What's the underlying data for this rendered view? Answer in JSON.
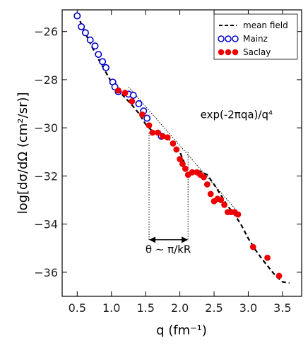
{
  "chart_data": {
    "type": "scatter",
    "xlabel": "q (fm⁻¹)",
    "ylabel": "log[dσ/dΩ (cm²/sr)]",
    "xlim": [
      0.28,
      3.78
    ],
    "ylim": [
      -37.0,
      -25.1
    ],
    "xticks": [
      0.5,
      1.0,
      1.5,
      2.0,
      2.5,
      3.0,
      3.5
    ],
    "xtick_labels": [
      "0.5",
      "1.0",
      "1.5",
      "2.0",
      "2.5",
      "3.0",
      "3.5"
    ],
    "yticks": [
      -26,
      -28,
      -30,
      -32,
      -34,
      -36
    ],
    "ytick_labels": [
      "−26",
      "−28",
      "−30",
      "−32",
      "−34",
      "−36"
    ],
    "grid": false,
    "legend_position": "top-right",
    "series": [
      {
        "name": "mean field",
        "kind": "line",
        "style": "dashed",
        "color": "#000000",
        "x": [
          0.5,
          0.6,
          0.7,
          0.8,
          0.9,
          1.0,
          1.1,
          1.2,
          1.3,
          1.4,
          1.5,
          1.6,
          1.7,
          1.8,
          1.9,
          2.0,
          2.05,
          2.1,
          2.2,
          2.3,
          2.4,
          2.5,
          2.6,
          2.7,
          2.8,
          2.9,
          3.0,
          3.1,
          3.2,
          3.3,
          3.4,
          3.5,
          3.6
        ],
        "y": [
          -25.3,
          -25.95,
          -26.55,
          -27.1,
          -27.6,
          -28.1,
          -28.45,
          -28.75,
          -29.05,
          -29.4,
          -29.85,
          -30.15,
          -30.3,
          -30.4,
          -30.6,
          -31.0,
          -31.35,
          -31.7,
          -31.8,
          -31.8,
          -31.95,
          -32.35,
          -32.8,
          -33.25,
          -33.6,
          -34.05,
          -34.6,
          -35.05,
          -35.45,
          -35.8,
          -36.15,
          -36.4,
          -36.45
        ]
      },
      {
        "name": "Mainz",
        "kind": "scatter",
        "marker": "open-circle",
        "color": "#0000cc",
        "x": [
          0.5,
          0.56,
          0.62,
          0.69,
          0.76,
          0.81,
          0.87,
          0.92,
          1.02,
          1.05,
          1.1,
          1.25,
          1.32,
          1.4,
          1.47,
          1.52,
          1.73
        ],
        "y": [
          -25.35,
          -25.8,
          -26.05,
          -26.35,
          -26.6,
          -26.95,
          -27.25,
          -27.5,
          -28.1,
          -28.3,
          -28.5,
          -28.6,
          -28.65,
          -29.0,
          -29.3,
          -29.6,
          -30.35
        ]
      },
      {
        "name": "Saclay",
        "kind": "scatter",
        "marker": "filled-circle",
        "color": "#ee0000",
        "x": [
          1.1,
          1.2,
          1.3,
          1.45,
          1.55,
          1.6,
          1.68,
          1.75,
          1.82,
          1.9,
          1.95,
          2.0,
          2.04,
          2.08,
          2.12,
          2.18,
          2.25,
          2.3,
          2.35,
          2.4,
          2.45,
          2.5,
          2.55,
          2.6,
          2.65,
          2.7,
          2.75,
          2.8,
          2.85,
          3.07,
          3.28,
          3.45
        ],
        "y": [
          -28.45,
          -28.55,
          -28.9,
          -29.45,
          -29.9,
          -30.2,
          -30.2,
          -30.35,
          -30.4,
          -30.65,
          -30.9,
          -31.3,
          -31.5,
          -31.7,
          -31.95,
          -31.85,
          -31.85,
          -31.95,
          -32.05,
          -32.35,
          -32.75,
          -33.05,
          -32.95,
          -33.0,
          -33.2,
          -33.5,
          -33.5,
          -33.5,
          -33.6,
          -34.95,
          -35.4,
          -36.15
        ]
      }
    ],
    "annotations": [
      {
        "text": "exp(-2πqa)/q⁴",
        "kind": "dotted-line",
        "line_x": [
          1.25,
          2.85
        ],
        "line_y": [
          -28.3,
          -33.5
        ],
        "label_x": 2.3,
        "label_y": -29.6
      },
      {
        "text": "θ ~ π/kR",
        "kind": "double-arrow",
        "x1": 1.55,
        "x2": 2.12,
        "y": -34.65,
        "guide_tops": [
          -30.2,
          -31.0
        ],
        "guide_bottom": -34.7,
        "label_x": 1.83,
        "label_y": -35.2
      }
    ]
  }
}
